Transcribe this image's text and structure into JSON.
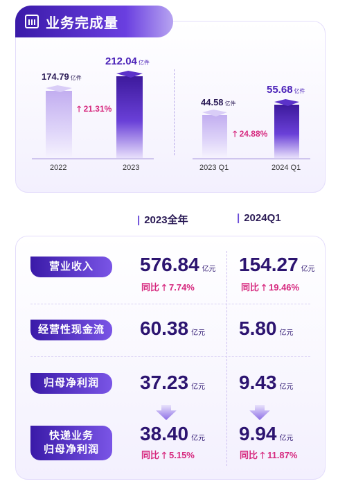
{
  "header": {
    "title": "业务完成量"
  },
  "chart_data": [
    {
      "type": "bar",
      "unit": "亿件",
      "categories": [
        "2022",
        "2023"
      ],
      "values": [
        174.79,
        212.04
      ],
      "value_labels": [
        "174.79",
        "212.04"
      ],
      "growth_label": "21.31%"
    },
    {
      "type": "bar",
      "unit": "亿件",
      "categories": [
        "2023 Q1",
        "2024 Q1"
      ],
      "values": [
        44.58,
        55.68
      ],
      "value_labels": [
        "44.58",
        "55.68"
      ],
      "growth_label": "24.88%"
    }
  ],
  "table": {
    "col_headers": [
      "2023全年",
      "2024Q1"
    ],
    "yoy_label": "同比",
    "rows": [
      {
        "label": "营业收入",
        "y2023": "576.84",
        "unit": "亿元",
        "yoy2023": "7.74%",
        "q1": "154.27",
        "yoyq1": "19.46%"
      },
      {
        "label": "经营性现金流",
        "y2023": "60.38",
        "unit": "亿元",
        "q1": "5.80"
      },
      {
        "label": "归母净利润",
        "y2023": "37.23",
        "unit": "亿元",
        "q1": "9.43"
      },
      {
        "label_line1": "快递业务",
        "label_line2": "归母净利润",
        "y2023": "38.40",
        "unit": "亿元",
        "yoy2023": "5.15%",
        "q1": "9.94",
        "yoyq1": "11.87%"
      }
    ]
  },
  "colors": {
    "accent": "#4b22b8",
    "growth": "#d6287e"
  }
}
